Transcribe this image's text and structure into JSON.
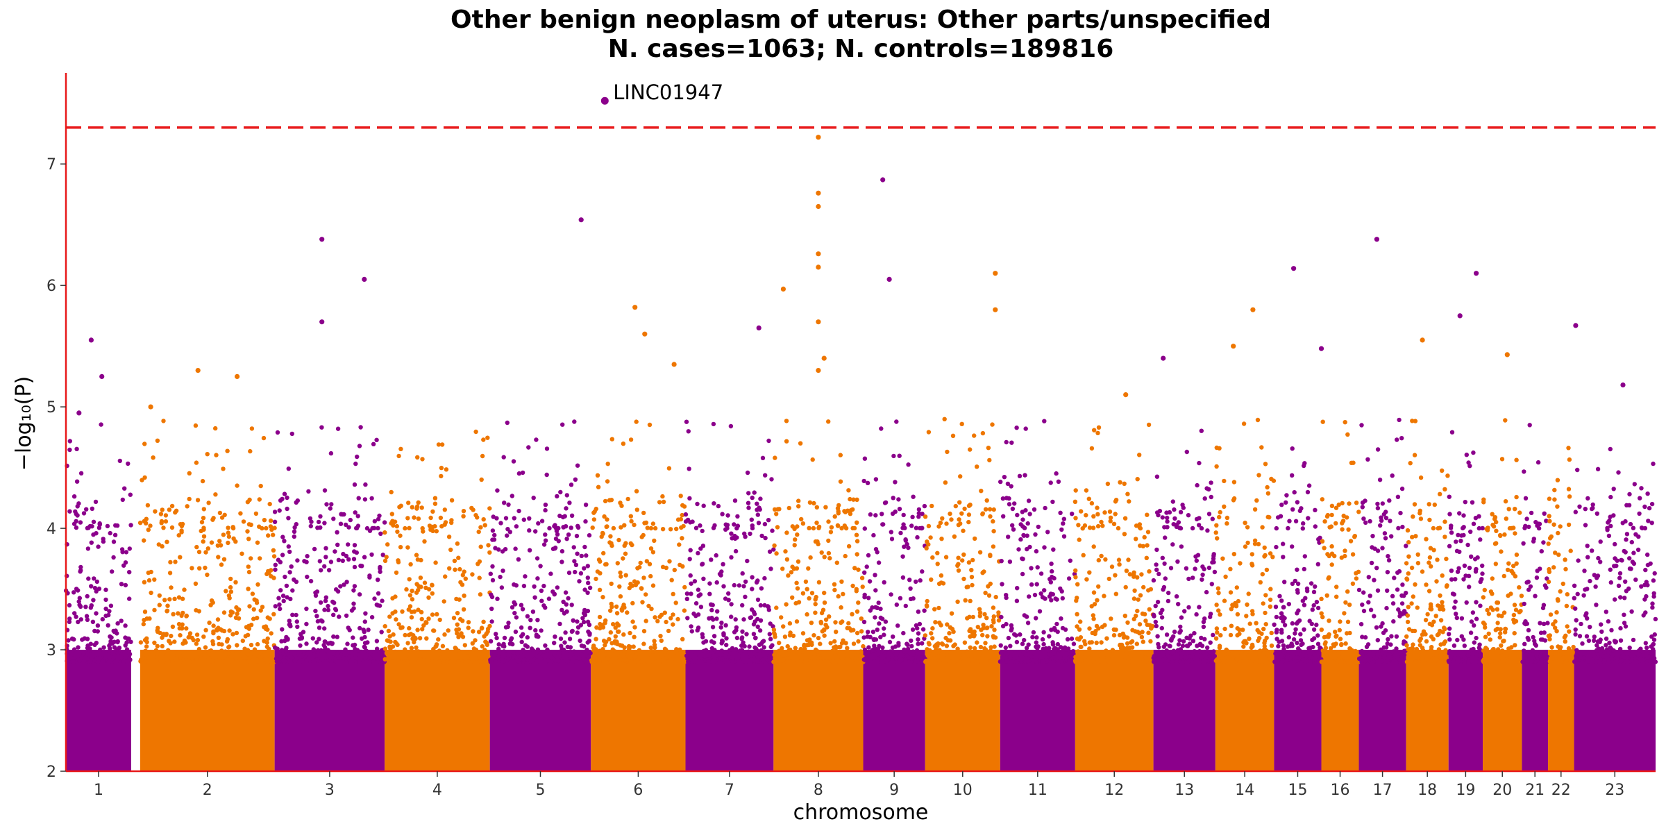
{
  "chart_data": {
    "type": "scatter",
    "title": "Other benign neoplasm of uterus: Other parts/unspecified",
    "subtitle": "N. cases=1063; N. controls=189816",
    "xlabel": "chromosome",
    "ylabel": "−log₁₀(P)",
    "ylim": [
      2,
      7.75
    ],
    "yticks": [
      2,
      3,
      4,
      5,
      6,
      7
    ],
    "significance_line": 7.3,
    "colors": {
      "odd": "#8B008B",
      "even": "#EE7600",
      "threshold": "#E8191A",
      "axis": "#E8191A"
    },
    "grid": false,
    "legend": "none",
    "chromosomes": [
      {
        "label": "1",
        "start": 0.0,
        "end": 4.0
      },
      {
        "label": "2",
        "start": 4.55,
        "end": 12.8
      },
      {
        "label": "3",
        "start": 12.8,
        "end": 19.55
      },
      {
        "label": "4",
        "start": 19.55,
        "end": 26.0
      },
      {
        "label": "5",
        "start": 26.0,
        "end": 32.2
      },
      {
        "label": "6",
        "start": 32.2,
        "end": 38.0
      },
      {
        "label": "7",
        "start": 38.0,
        "end": 43.4
      },
      {
        "label": "8",
        "start": 43.4,
        "end": 48.9
      },
      {
        "label": "9",
        "start": 48.9,
        "end": 52.7
      },
      {
        "label": "10",
        "start": 52.7,
        "end": 57.3
      },
      {
        "label": "11",
        "start": 57.3,
        "end": 61.9
      },
      {
        "label": "12",
        "start": 61.9,
        "end": 66.7
      },
      {
        "label": "13",
        "start": 66.7,
        "end": 70.5
      },
      {
        "label": "14",
        "start": 70.5,
        "end": 74.1
      },
      {
        "label": "15",
        "start": 74.1,
        "end": 77.0
      },
      {
        "label": "16",
        "start": 77.0,
        "end": 79.3
      },
      {
        "label": "17",
        "start": 79.3,
        "end": 82.2
      },
      {
        "label": "18",
        "start": 82.2,
        "end": 84.8
      },
      {
        "label": "19",
        "start": 84.8,
        "end": 86.9
      },
      {
        "label": "20",
        "start": 86.9,
        "end": 89.3
      },
      {
        "label": "21",
        "start": 89.3,
        "end": 90.9
      },
      {
        "label": "22",
        "start": 90.9,
        "end": 92.5
      },
      {
        "label": "23",
        "start": 92.5,
        "end": 97.5
      }
    ],
    "xlim": [
      0,
      97.5
    ],
    "peaks": [
      {
        "x": 0.8,
        "y": 4.95
      },
      {
        "x": 1.55,
        "y": 5.55
      },
      {
        "x": 2.2,
        "y": 5.25
      },
      {
        "x": 5.2,
        "y": 5.0
      },
      {
        "x": 8.1,
        "y": 5.3
      },
      {
        "x": 10.5,
        "y": 5.25
      },
      {
        "x": 18.3,
        "y": 6.05
      },
      {
        "x": 15.7,
        "y": 5.7
      },
      {
        "x": 15.7,
        "y": 6.38
      },
      {
        "x": 34.9,
        "y": 5.82
      },
      {
        "x": 35.5,
        "y": 5.6
      },
      {
        "x": 37.3,
        "y": 5.35
      },
      {
        "x": 31.6,
        "y": 6.54
      },
      {
        "x": 42.5,
        "y": 5.65
      },
      {
        "x": 44.0,
        "y": 5.97
      },
      {
        "x": 46.5,
        "y": 5.4
      },
      {
        "x": 50.1,
        "y": 6.87
      },
      {
        "x": 50.5,
        "y": 6.05
      },
      {
        "x": 57.0,
        "y": 6.1
      },
      {
        "x": 57.0,
        "y": 5.8
      },
      {
        "x": 65.0,
        "y": 5.1
      },
      {
        "x": 67.3,
        "y": 5.4
      },
      {
        "x": 71.6,
        "y": 5.5
      },
      {
        "x": 72.8,
        "y": 5.8
      },
      {
        "x": 75.3,
        "y": 6.14
      },
      {
        "x": 77.0,
        "y": 5.48
      },
      {
        "x": 80.4,
        "y": 6.38
      },
      {
        "x": 83.2,
        "y": 5.55
      },
      {
        "x": 85.5,
        "y": 5.75
      },
      {
        "x": 86.5,
        "y": 6.1
      },
      {
        "x": 88.4,
        "y": 5.43
      },
      {
        "x": 92.6,
        "y": 5.67
      },
      {
        "x": 95.5,
        "y": 5.18
      }
    ],
    "chr8_column": {
      "x": 46.15,
      "values": [
        7.22,
        6.76,
        6.65,
        6.26,
        6.15,
        5.7,
        5.3
      ]
    },
    "annotations": [
      {
        "label": "LINC01947",
        "x": 33.05,
        "y": 7.52
      }
    ]
  }
}
